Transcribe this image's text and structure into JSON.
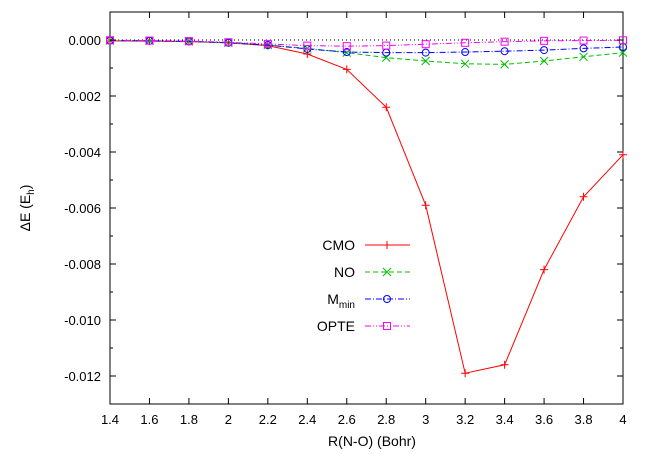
{
  "chart_data": {
    "type": "line",
    "title": "",
    "xlabel": "R(N-O) (Bohr)",
    "ylabel": "ΔE (E",
    "ylabel_sub": "h",
    "ylabel_end": ")",
    "xlim": [
      1.4,
      4.0
    ],
    "ylim": [
      -0.013,
      0.001
    ],
    "x_ticks": [
      "1.4",
      "1.6",
      "1.8",
      "2",
      "2.2",
      "2.4",
      "2.6",
      "2.8",
      "3",
      "3.2",
      "3.4",
      "3.6",
      "3.8",
      "4"
    ],
    "x_tick_values": [
      1.4,
      1.6,
      1.8,
      2.0,
      2.2,
      2.4,
      2.6,
      2.8,
      3.0,
      3.2,
      3.4,
      3.6,
      3.8,
      4.0
    ],
    "y_ticks": [
      "0.000",
      "-0.002",
      "-0.004",
      "-0.006",
      "-0.008",
      "-0.010",
      "-0.012"
    ],
    "y_tick_values": [
      0.0,
      -0.002,
      -0.004,
      -0.006,
      -0.008,
      -0.01,
      -0.012
    ],
    "grid": false,
    "legend_position": "center",
    "x": [
      1.4,
      1.6,
      1.8,
      2.0,
      2.2,
      2.4,
      2.6,
      2.8,
      3.0,
      3.2,
      3.4,
      3.6,
      3.8,
      4.0
    ],
    "series": [
      {
        "name": "CMO",
        "color": "#ff0000",
        "marker": "plus",
        "dash": "",
        "values": [
          -3e-05,
          -4e-05,
          -6e-05,
          -0.0001,
          -0.0002,
          -0.0005,
          -0.00105,
          -0.0024,
          -0.0059,
          -0.0119,
          -0.0116,
          -0.0082,
          -0.0056,
          -0.0041
        ]
      },
      {
        "name": "NO",
        "color": "#00c000",
        "marker": "cross",
        "dash": "5,3",
        "values": [
          -2e-05,
          -3e-05,
          -5e-05,
          -0.0001,
          -0.00018,
          -0.0003,
          -0.00045,
          -0.00063,
          -0.00075,
          -0.00085,
          -0.00087,
          -0.00075,
          -0.0006,
          -0.00045
        ]
      },
      {
        "name_main": "M",
        "name_sub": "min",
        "color": "#0000ff",
        "marker": "circle",
        "dash": "6,2,1,2",
        "values": [
          -2e-05,
          -3e-05,
          -5e-05,
          -0.0001,
          -0.00018,
          -0.00032,
          -0.00043,
          -0.00045,
          -0.00045,
          -0.00043,
          -0.0004,
          -0.00036,
          -0.0003,
          -0.00025
        ]
      },
      {
        "name": "OPTE",
        "color": "#ff00ff",
        "marker": "square",
        "dash": "6,2,1,2,1,2",
        "values": [
          -1e-05,
          -2e-05,
          -4e-05,
          -8e-05,
          -0.00014,
          -0.0002,
          -0.00022,
          -0.0002,
          -0.00015,
          -0.0001,
          -6e-05,
          -3e-05,
          -2e-05,
          -1e-05
        ]
      }
    ],
    "zero_line_color": "#000000"
  }
}
